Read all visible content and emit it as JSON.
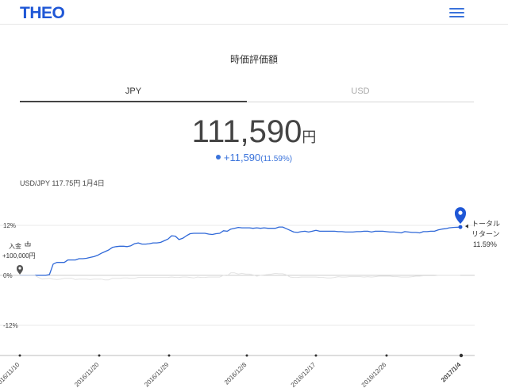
{
  "header": {
    "logo": "THEO",
    "menu_icon": "hamburger-menu-icon"
  },
  "section_title": "時価評価額",
  "tabs": [
    {
      "label": "JPY",
      "active": true
    },
    {
      "label": "USD",
      "active": false
    }
  ],
  "valuation": {
    "amount": "111,590",
    "unit": "円",
    "change": "+11,590",
    "change_pct": "(11.59%)"
  },
  "fx_rate": "USD/JPY 117.75円 1月4日",
  "colors": {
    "brand": "#1f57d6",
    "line": "#2f68d8",
    "accent": "#3a73db"
  },
  "chart_data": {
    "type": "line",
    "x_tick_labels": [
      "2016/11/10",
      "2016/11/20",
      "2016/11/29",
      "2016/12/8",
      "2016/12/17",
      "2016/12/26",
      "2017/1/4"
    ],
    "y_tick_labels": [
      "12%",
      "0%",
      "-12%"
    ],
    "y_ticks": [
      12,
      0,
      -12
    ],
    "ylim": [
      -17,
      17
    ],
    "grid": true,
    "series": [
      {
        "role": "portfolio",
        "color": "#2f68d8",
        "values": [
          0,
          0,
          0,
          0,
          0,
          0,
          0,
          0,
          0.2,
          2.7,
          3.1,
          3.1,
          3.1,
          3.7,
          3.7,
          3.7,
          4.0,
          4.0,
          4.1,
          4.3,
          4.5,
          4.8,
          5.3,
          5.7,
          6.1,
          6.7,
          6.9,
          7.0,
          7.0,
          6.9,
          7.1,
          7.6,
          7.8,
          7.5,
          7.5,
          7.6,
          7.8,
          7.8,
          7.9,
          8.3,
          8.7,
          9.5,
          9.4,
          8.6,
          8.9,
          9.5,
          10.0,
          10.1,
          10.1,
          10.1,
          10.1,
          9.9,
          9.8,
          10.0,
          10.1,
          10.7,
          10.6,
          11.1,
          11.3,
          11.5,
          11.4,
          11.4,
          11.4,
          11.3,
          11.4,
          11.3,
          11.4,
          11.3,
          11.3,
          11.3,
          11.6,
          11.6,
          11.2,
          10.8,
          10.4,
          10.3,
          10.5,
          10.6,
          10.4,
          10.6,
          10.8,
          10.6,
          10.6,
          10.6,
          10.6,
          10.6,
          10.5,
          10.5,
          10.4,
          10.4,
          10.4,
          10.5,
          10.5,
          10.6,
          10.6,
          10.4,
          10.6,
          10.6,
          10.6,
          10.5,
          10.4,
          10.4,
          10.3,
          10.2,
          10.5,
          10.4,
          10.3,
          10.3,
          10.2,
          10.5,
          10.5,
          10.6,
          10.6,
          10.9,
          11.1,
          11.2,
          11.4,
          11.5,
          11.55,
          11.59
        ]
      },
      {
        "role": "reference",
        "color": "#e2e2e2",
        "values": [
          0,
          0,
          0,
          0,
          0,
          -0.5,
          -0.9,
          -0.8,
          -0.7,
          -0.9,
          -1.0,
          -0.9,
          -0.7,
          -0.7,
          -0.7,
          -1.0,
          -0.9,
          -0.9,
          -0.9,
          -1.0,
          -0.9,
          -0.9,
          -0.9,
          -1.1,
          -1.1,
          -0.7,
          -0.7,
          -0.7,
          -0.6,
          -0.6,
          -0.7,
          -0.7,
          -0.5,
          -0.5,
          -0.5,
          -0.5,
          -0.5,
          -0.5,
          -0.5,
          -0.5,
          -0.5,
          -0.4,
          -0.5,
          -0.5,
          -0.4,
          -0.4,
          -0.5,
          -0.6,
          -0.4,
          -0.5,
          -0.5,
          -0.4,
          -0.4,
          -0.4,
          -0.4,
          0,
          -0.1,
          0.6,
          0.6,
          0.3,
          0.5,
          0.3,
          0.3,
          0.1,
          -0.2,
          0,
          0.1,
          0.2,
          0.3,
          0.5,
          0.4,
          0.4,
          0.1,
          -0.4,
          -0.5,
          -0.5,
          -0.4,
          -0.4,
          -0.4,
          -0.4,
          -0.4,
          -0.5,
          -0.5,
          -0.6,
          -0.6,
          -0.5,
          -0.3,
          -0.4,
          -0.4,
          -0.3,
          -0.3,
          -0.3,
          -0.3,
          -0.4,
          -0.3,
          -0.4,
          -0.3,
          -0.2,
          -0.2,
          -0.2,
          -0.2,
          -0.3,
          -0.3,
          -0.4,
          -0.4,
          -0.4,
          -0.3,
          -0.2,
          -0.2,
          -0.1,
          -0.1,
          -0.1,
          -0.1,
          0,
          0,
          0,
          0,
          0,
          0,
          0
        ]
      }
    ],
    "annotations": [
      {
        "label": "入金",
        "amount": "+100,000円",
        "icon": "deposit-tray-icon",
        "at": "start"
      },
      {
        "label": "トータル",
        "label2": "リターン",
        "value": "11.59%",
        "at": "end"
      }
    ]
  }
}
